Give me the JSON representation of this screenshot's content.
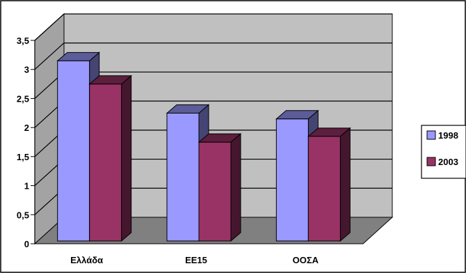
{
  "chart_data": {
    "type": "bar",
    "categories": [
      "Ελλάδα",
      "ΕΕ15",
      "ΟΟΣΑ"
    ],
    "series": [
      {
        "name": "1998",
        "values": [
          3.1,
          2.2,
          2.1
        ]
      },
      {
        "name": "2003",
        "values": [
          2.7,
          1.7,
          1.8
        ]
      }
    ],
    "y_ticks": [
      "0",
      "0,5",
      "1",
      "1,5",
      "2",
      "2,5",
      "3",
      "3,5"
    ],
    "ylim": [
      0,
      3.5
    ],
    "grid": true,
    "legend_position": "right",
    "title": "",
    "xlabel": "",
    "ylabel": "",
    "colors": {
      "series_1998": "#9999ff",
      "series_2003": "#993366",
      "wall": "#c0c0c0",
      "floor": "#808080",
      "gridline": "#000000"
    }
  }
}
